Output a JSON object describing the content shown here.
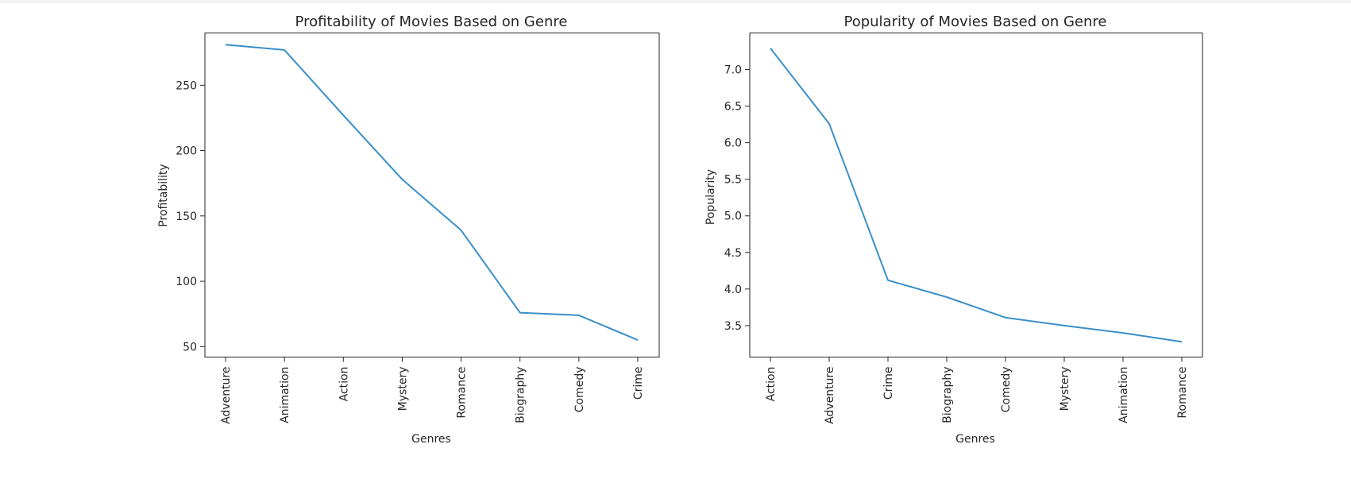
{
  "chart_data": [
    {
      "type": "line",
      "title": "Profitability of Movies Based on Genre",
      "xlabel": "Genres",
      "ylabel": "Profitability",
      "categories": [
        "Adventure",
        "Animation",
        "Action",
        "Mystery",
        "Romance",
        "Biography",
        "Comedy",
        "Crime"
      ],
      "values": [
        281,
        277,
        227,
        178,
        139,
        76,
        74,
        55
      ],
      "yticks": [
        50,
        100,
        150,
        200,
        250
      ],
      "ylim": [
        42,
        290
      ],
      "grid": false,
      "color": "#3a8fc7"
    },
    {
      "type": "line",
      "title": "Popularity of Movies Based on Genre",
      "xlabel": "Genres",
      "ylabel": "Popularity",
      "categories": [
        "Action",
        "Adventure",
        "Crime",
        "Biography",
        "Comedy",
        "Mystery",
        "Animation",
        "Romance"
      ],
      "values": [
        7.29,
        6.26,
        4.12,
        3.89,
        3.61,
        3.5,
        3.4,
        3.28
      ],
      "yticks": [
        3.5,
        4.0,
        4.5,
        5.0,
        5.5,
        6.0,
        6.5,
        7.0
      ],
      "yticklabels": [
        "3.5",
        "4.0",
        "4.5",
        "5.0",
        "5.5",
        "6.0",
        "6.5",
        "7.0"
      ],
      "ylim": [
        3.07,
        7.5
      ],
      "grid": false,
      "color": "#3a8fc7"
    }
  ]
}
